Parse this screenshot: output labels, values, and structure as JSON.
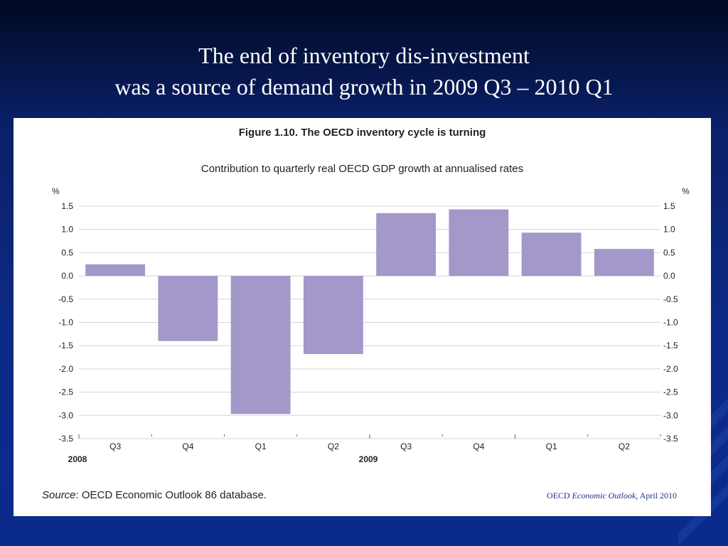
{
  "slide": {
    "title_line1": "The end of inventory dis-investment",
    "title_line2": "was a source of demand growth in 2009 Q3 – 2010 Q1"
  },
  "figure": {
    "source_label": "Source",
    "source_text": ": OECD Economic Outlook 86 database.",
    "citation_prefix": "OECD ",
    "citation_italic": "Economic Outlook",
    "citation_suffix": ", April 2010"
  },
  "chart_data": {
    "type": "bar",
    "title": "Figure 1.10. The OECD inventory cycle is turning",
    "subtitle": "Contribution to quarterly real OECD GDP growth at annualised rates",
    "ylabel_left": "%",
    "ylabel_right": "%",
    "categories": [
      "Q3",
      "Q4",
      "Q1",
      "Q2",
      "Q3",
      "Q4",
      "Q1",
      "Q2"
    ],
    "year_labels": [
      {
        "label": "2008",
        "category_index": 0
      },
      {
        "label": "2009",
        "category_index": 4
      }
    ],
    "values": [
      0.25,
      -1.4,
      -2.97,
      -1.68,
      1.35,
      1.43,
      0.93,
      0.58
    ],
    "ylim": [
      -3.5,
      1.5
    ],
    "yticks": [
      1.5,
      1.0,
      0.5,
      0.0,
      -0.5,
      -1.0,
      -1.5,
      -2.0,
      -2.5,
      -3.0,
      -3.5
    ],
    "ytick_labels": [
      "1.5",
      "1.0",
      "0.5",
      "0.0",
      "-0.5",
      "-1.0",
      "-1.5",
      "-2.0",
      "-2.5",
      "-3.0",
      "-3.5"
    ],
    "grid": true,
    "bar_color": "#a497c9"
  }
}
